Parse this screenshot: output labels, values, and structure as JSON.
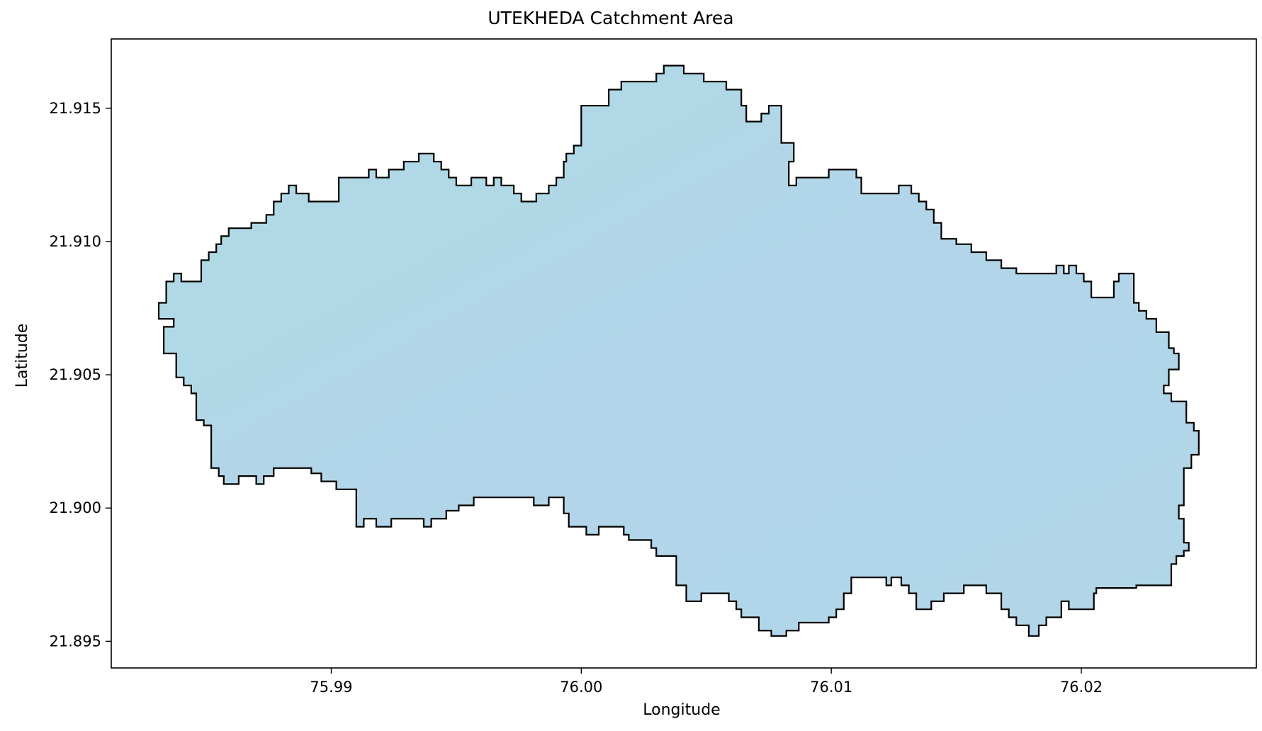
{
  "chart_data": {
    "type": "map",
    "title": "UTEKHEDA Catchment Area",
    "xlabel": "Longitude",
    "ylabel": "Latitude",
    "xlim": [
      75.9812,
      76.027
    ],
    "ylim": [
      21.894,
      21.9176
    ],
    "xticks": [
      75.99,
      76.0,
      76.01,
      76.02
    ],
    "xtick_labels": [
      "75.99",
      "76.00",
      "76.01",
      "76.02"
    ],
    "yticks": [
      21.895,
      21.9,
      21.905,
      21.91,
      21.915
    ],
    "ytick_labels": [
      "21.895",
      "21.900",
      "21.905",
      "21.910",
      "21.915"
    ],
    "grid": false,
    "fill_color": "#b4d6ea",
    "edge_color": "#000000",
    "outline": [
      [
        75.9831,
        21.9077
      ],
      [
        75.9834,
        21.9077
      ],
      [
        75.9834,
        21.9085
      ],
      [
        75.9837,
        21.9085
      ],
      [
        75.9837,
        21.9088
      ],
      [
        75.984,
        21.9088
      ],
      [
        75.984,
        21.9085
      ],
      [
        75.9848,
        21.9085
      ],
      [
        75.9848,
        21.9093
      ],
      [
        75.9851,
        21.9093
      ],
      [
        75.9851,
        21.9096
      ],
      [
        75.9854,
        21.9096
      ],
      [
        75.9854,
        21.9099
      ],
      [
        75.9856,
        21.9099
      ],
      [
        75.9856,
        21.9102
      ],
      [
        75.9859,
        21.9102
      ],
      [
        75.9859,
        21.9105
      ],
      [
        75.9868,
        21.9105
      ],
      [
        75.9868,
        21.9107
      ],
      [
        75.9874,
        21.9107
      ],
      [
        75.9874,
        21.911
      ],
      [
        75.9877,
        21.911
      ],
      [
        75.9877,
        21.9115
      ],
      [
        75.988,
        21.9115
      ],
      [
        75.988,
        21.9118
      ],
      [
        75.9883,
        21.9118
      ],
      [
        75.9883,
        21.9121
      ],
      [
        75.9886,
        21.9121
      ],
      [
        75.9886,
        21.9118
      ],
      [
        75.9891,
        21.9118
      ],
      [
        75.9891,
        21.9115
      ],
      [
        75.9903,
        21.9115
      ],
      [
        75.9903,
        21.9124
      ],
      [
        75.9915,
        21.9124
      ],
      [
        75.9915,
        21.9127
      ],
      [
        75.9918,
        21.9127
      ],
      [
        75.9918,
        21.9124
      ],
      [
        75.9923,
        21.9124
      ],
      [
        75.9923,
        21.9127
      ],
      [
        75.9929,
        21.9127
      ],
      [
        75.9929,
        21.913
      ],
      [
        75.9935,
        21.913
      ],
      [
        75.9935,
        21.9133
      ],
      [
        75.9941,
        21.9133
      ],
      [
        75.9941,
        21.913
      ],
      [
        75.9944,
        21.913
      ],
      [
        75.9944,
        21.9127
      ],
      [
        75.9947,
        21.9127
      ],
      [
        75.9947,
        21.9124
      ],
      [
        75.995,
        21.9124
      ],
      [
        75.995,
        21.9121
      ],
      [
        75.9956,
        21.9121
      ],
      [
        75.9956,
        21.9124
      ],
      [
        75.9962,
        21.9124
      ],
      [
        75.9962,
        21.9121
      ],
      [
        75.9965,
        21.9121
      ],
      [
        75.9965,
        21.9124
      ],
      [
        75.9968,
        21.9124
      ],
      [
        75.9968,
        21.9121
      ],
      [
        75.9973,
        21.9121
      ],
      [
        75.9973,
        21.9118
      ],
      [
        75.9976,
        21.9118
      ],
      [
        75.9976,
        21.9115
      ],
      [
        75.9982,
        21.9115
      ],
      [
        75.9982,
        21.9118
      ],
      [
        75.9987,
        21.9118
      ],
      [
        75.9987,
        21.9121
      ],
      [
        75.999,
        21.9121
      ],
      [
        75.999,
        21.9124
      ],
      [
        75.9993,
        21.9124
      ],
      [
        75.9993,
        21.913
      ],
      [
        75.9994,
        21.913
      ],
      [
        75.9994,
        21.9133
      ],
      [
        75.9997,
        21.9133
      ],
      [
        75.9997,
        21.9136
      ],
      [
        76.0,
        21.9136
      ],
      [
        76.0,
        21.9151
      ],
      [
        76.0011,
        21.9151
      ],
      [
        76.0011,
        21.9157
      ],
      [
        76.0016,
        21.9157
      ],
      [
        76.0016,
        21.916
      ],
      [
        76.003,
        21.916
      ],
      [
        76.003,
        21.9163
      ],
      [
        76.0033,
        21.9163
      ],
      [
        76.0033,
        21.9166
      ],
      [
        76.0041,
        21.9166
      ],
      [
        76.0041,
        21.9163
      ],
      [
        76.0049,
        21.9163
      ],
      [
        76.0049,
        21.916
      ],
      [
        76.0058,
        21.916
      ],
      [
        76.0058,
        21.9157
      ],
      [
        76.0064,
        21.9157
      ],
      [
        76.0064,
        21.9151
      ],
      [
        76.0066,
        21.9151
      ],
      [
        76.0066,
        21.9145
      ],
      [
        76.0072,
        21.9145
      ],
      [
        76.0072,
        21.9148
      ],
      [
        76.0075,
        21.9148
      ],
      [
        76.0075,
        21.9151
      ],
      [
        76.008,
        21.9151
      ],
      [
        76.008,
        21.9137
      ],
      [
        76.0085,
        21.9137
      ],
      [
        76.0085,
        21.913
      ],
      [
        76.0083,
        21.913
      ],
      [
        76.0083,
        21.9121
      ],
      [
        76.0086,
        21.9121
      ],
      [
        76.0086,
        21.9124
      ],
      [
        76.0099,
        21.9124
      ],
      [
        76.0099,
        21.9127
      ],
      [
        76.011,
        21.9127
      ],
      [
        76.011,
        21.9124
      ],
      [
        76.0112,
        21.9124
      ],
      [
        76.0112,
        21.9118
      ],
      [
        76.0127,
        21.9118
      ],
      [
        76.0127,
        21.9121
      ],
      [
        76.0132,
        21.9121
      ],
      [
        76.0132,
        21.9118
      ],
      [
        76.0135,
        21.9118
      ],
      [
        76.0135,
        21.9115
      ],
      [
        76.0138,
        21.9115
      ],
      [
        76.0138,
        21.9112
      ],
      [
        76.0141,
        21.9112
      ],
      [
        76.0141,
        21.9107
      ],
      [
        76.0144,
        21.9107
      ],
      [
        76.0144,
        21.9101
      ],
      [
        76.015,
        21.9101
      ],
      [
        76.015,
        21.9099
      ],
      [
        76.0156,
        21.9099
      ],
      [
        76.0156,
        21.9096
      ],
      [
        76.0162,
        21.9096
      ],
      [
        76.0162,
        21.9093
      ],
      [
        76.0168,
        21.9093
      ],
      [
        76.0168,
        21.909
      ],
      [
        76.0174,
        21.909
      ],
      [
        76.0174,
        21.9088
      ],
      [
        76.019,
        21.9088
      ],
      [
        76.019,
        21.9091
      ],
      [
        76.0193,
        21.9091
      ],
      [
        76.0193,
        21.9088
      ],
      [
        76.0195,
        21.9088
      ],
      [
        76.0195,
        21.9091
      ],
      [
        76.0198,
        21.9091
      ],
      [
        76.0198,
        21.9088
      ],
      [
        76.0201,
        21.9088
      ],
      [
        76.0201,
        21.9085
      ],
      [
        76.0204,
        21.9085
      ],
      [
        76.0204,
        21.9079
      ],
      [
        76.0213,
        21.9079
      ],
      [
        76.0213,
        21.9085
      ],
      [
        76.0215,
        21.9085
      ],
      [
        76.0215,
        21.9088
      ],
      [
        76.0221,
        21.9088
      ],
      [
        76.0221,
        21.9077
      ],
      [
        76.0223,
        21.9077
      ],
      [
        76.0223,
        21.9074
      ],
      [
        76.0226,
        21.9074
      ],
      [
        76.0226,
        21.9071
      ],
      [
        76.023,
        21.9071
      ],
      [
        76.023,
        21.9066
      ],
      [
        76.0235,
        21.9066
      ],
      [
        76.0235,
        21.906
      ],
      [
        76.0237,
        21.906
      ],
      [
        76.0237,
        21.9058
      ],
      [
        76.0239,
        21.9058
      ],
      [
        76.0239,
        21.9052
      ],
      [
        76.0235,
        21.9052
      ],
      [
        76.0235,
        21.9046
      ],
      [
        76.0233,
        21.9046
      ],
      [
        76.0233,
        21.9043
      ],
      [
        76.0236,
        21.9043
      ],
      [
        76.0236,
        21.904
      ],
      [
        76.0242,
        21.904
      ],
      [
        76.0242,
        21.9032
      ],
      [
        76.0245,
        21.9032
      ],
      [
        76.0245,
        21.9029
      ],
      [
        76.0247,
        21.9029
      ],
      [
        76.0247,
        21.902
      ],
      [
        76.0244,
        21.902
      ],
      [
        76.0244,
        21.9015
      ],
      [
        76.0241,
        21.9015
      ],
      [
        76.0241,
        21.9001
      ],
      [
        76.0239,
        21.9001
      ],
      [
        76.0239,
        21.8996
      ],
      [
        76.0241,
        21.8996
      ],
      [
        76.0241,
        21.8987
      ],
      [
        76.0243,
        21.8987
      ],
      [
        76.0243,
        21.8984
      ],
      [
        76.0241,
        21.8984
      ],
      [
        76.0241,
        21.8982
      ],
      [
        76.0238,
        21.8982
      ],
      [
        76.0238,
        21.8979
      ],
      [
        76.0236,
        21.8979
      ],
      [
        76.0236,
        21.8971
      ],
      [
        76.0222,
        21.8971
      ],
      [
        76.0222,
        21.897
      ],
      [
        76.0206,
        21.897
      ],
      [
        76.0206,
        21.8968
      ],
      [
        76.0205,
        21.8968
      ],
      [
        76.0205,
        21.8962
      ],
      [
        76.0195,
        21.8962
      ],
      [
        76.0195,
        21.8965
      ],
      [
        76.0192,
        21.8965
      ],
      [
        76.0192,
        21.8959
      ],
      [
        76.0186,
        21.8959
      ],
      [
        76.0186,
        21.8956
      ],
      [
        76.0183,
        21.8956
      ],
      [
        76.0183,
        21.8952
      ],
      [
        76.0179,
        21.8952
      ],
      [
        76.0179,
        21.8956
      ],
      [
        76.0174,
        21.8956
      ],
      [
        76.0174,
        21.8959
      ],
      [
        76.0171,
        21.8959
      ],
      [
        76.0171,
        21.8962
      ],
      [
        76.0168,
        21.8962
      ],
      [
        76.0168,
        21.8968
      ],
      [
        76.0162,
        21.8968
      ],
      [
        76.0162,
        21.8971
      ],
      [
        76.0153,
        21.8971
      ],
      [
        76.0153,
        21.8968
      ],
      [
        76.0145,
        21.8968
      ],
      [
        76.0145,
        21.8965
      ],
      [
        76.014,
        21.8965
      ],
      [
        76.014,
        21.8962
      ],
      [
        76.0134,
        21.8962
      ],
      [
        76.0134,
        21.8968
      ],
      [
        76.0131,
        21.8968
      ],
      [
        76.0131,
        21.8971
      ],
      [
        76.0128,
        21.8971
      ],
      [
        76.0128,
        21.8974
      ],
      [
        76.0124,
        21.8974
      ],
      [
        76.0124,
        21.8971
      ],
      [
        76.0122,
        21.8971
      ],
      [
        76.0122,
        21.8974
      ],
      [
        76.0108,
        21.8974
      ],
      [
        76.0108,
        21.8968
      ],
      [
        76.0105,
        21.8968
      ],
      [
        76.0105,
        21.8962
      ],
      [
        76.0102,
        21.8962
      ],
      [
        76.0102,
        21.8959
      ],
      [
        76.0099,
        21.8959
      ],
      [
        76.0099,
        21.8957
      ],
      [
        76.0087,
        21.8957
      ],
      [
        76.0087,
        21.8954
      ],
      [
        76.0082,
        21.8954
      ],
      [
        76.0082,
        21.8952
      ],
      [
        76.0076,
        21.8952
      ],
      [
        76.0076,
        21.8954
      ],
      [
        76.0071,
        21.8954
      ],
      [
        76.0071,
        21.8959
      ],
      [
        76.0064,
        21.8959
      ],
      [
        76.0064,
        21.8962
      ],
      [
        76.0062,
        21.8962
      ],
      [
        76.0062,
        21.8965
      ],
      [
        76.0059,
        21.8965
      ],
      [
        76.0059,
        21.8968
      ],
      [
        76.0048,
        21.8968
      ],
      [
        76.0048,
        21.8965
      ],
      [
        76.0042,
        21.8965
      ],
      [
        76.0042,
        21.8971
      ],
      [
        76.0038,
        21.8971
      ],
      [
        76.0038,
        21.8982
      ],
      [
        76.003,
        21.8982
      ],
      [
        76.003,
        21.8985
      ],
      [
        76.0028,
        21.8985
      ],
      [
        76.0028,
        21.8988
      ],
      [
        76.0019,
        21.8988
      ],
      [
        76.0019,
        21.899
      ],
      [
        76.0017,
        21.899
      ],
      [
        76.0017,
        21.8993
      ],
      [
        76.0007,
        21.8993
      ],
      [
        76.0007,
        21.899
      ],
      [
        76.0002,
        21.899
      ],
      [
        76.0002,
        21.8993
      ],
      [
        75.9995,
        21.8993
      ],
      [
        75.9995,
        21.8998
      ],
      [
        75.9993,
        21.8998
      ],
      [
        75.9993,
        21.9004
      ],
      [
        75.9987,
        21.9004
      ],
      [
        75.9987,
        21.9001
      ],
      [
        75.9981,
        21.9001
      ],
      [
        75.9981,
        21.9004
      ],
      [
        75.9957,
        21.9004
      ],
      [
        75.9957,
        21.9001
      ],
      [
        75.9951,
        21.9001
      ],
      [
        75.9951,
        21.8999
      ],
      [
        75.9946,
        21.8999
      ],
      [
        75.9946,
        21.8996
      ],
      [
        75.994,
        21.8996
      ],
      [
        75.994,
        21.8993
      ],
      [
        75.9937,
        21.8993
      ],
      [
        75.9937,
        21.8996
      ],
      [
        75.9924,
        21.8996
      ],
      [
        75.9924,
        21.8993
      ],
      [
        75.9918,
        21.8993
      ],
      [
        75.9918,
        21.8996
      ],
      [
        75.9913,
        21.8996
      ],
      [
        75.9913,
        21.8993
      ],
      [
        75.991,
        21.8993
      ],
      [
        75.991,
        21.9007
      ],
      [
        75.9902,
        21.9007
      ],
      [
        75.9902,
        21.901
      ],
      [
        75.9896,
        21.901
      ],
      [
        75.9896,
        21.9013
      ],
      [
        75.9892,
        21.9013
      ],
      [
        75.9892,
        21.9015
      ],
      [
        75.9877,
        21.9015
      ],
      [
        75.9877,
        21.9012
      ],
      [
        75.9873,
        21.9012
      ],
      [
        75.9873,
        21.9009
      ],
      [
        75.987,
        21.9009
      ],
      [
        75.987,
        21.9012
      ],
      [
        75.9863,
        21.9012
      ],
      [
        75.9863,
        21.9009
      ],
      [
        75.9857,
        21.9009
      ],
      [
        75.9857,
        21.9012
      ],
      [
        75.9855,
        21.9012
      ],
      [
        75.9855,
        21.9015
      ],
      [
        75.9852,
        21.9015
      ],
      [
        75.9852,
        21.9031
      ],
      [
        75.9849,
        21.9031
      ],
      [
        75.9849,
        21.9033
      ],
      [
        75.9846,
        21.9033
      ],
      [
        75.9846,
        21.9043
      ],
      [
        75.9844,
        21.9043
      ],
      [
        75.9844,
        21.9046
      ],
      [
        75.9841,
        21.9046
      ],
      [
        75.9841,
        21.9049
      ],
      [
        75.9838,
        21.9049
      ],
      [
        75.9838,
        21.9058
      ],
      [
        75.9833,
        21.9058
      ],
      [
        75.9833,
        21.9068
      ],
      [
        75.9837,
        21.9068
      ],
      [
        75.9837,
        21.9071
      ],
      [
        75.9831,
        21.9071
      ]
    ]
  }
}
